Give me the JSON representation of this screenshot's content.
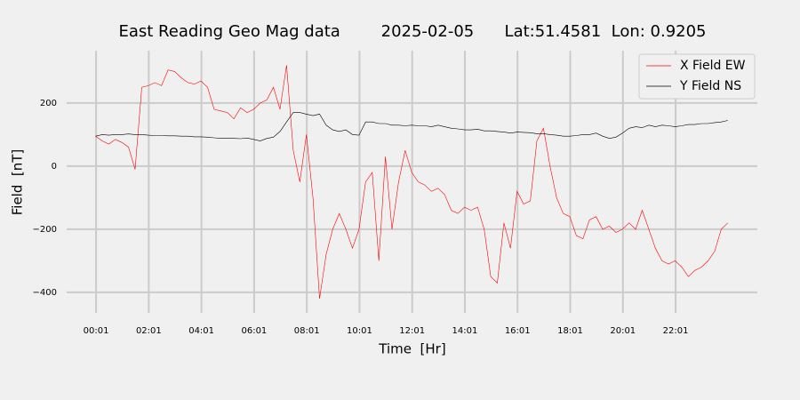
{
  "chart_data": {
    "type": "line",
    "title": "East Reading Geo Mag data        2025-02-05      Lat:51.4581  Lon: 0.9205",
    "x_label": "Time  [Hr]",
    "y_label": "Field  [nT]",
    "x": [
      0,
      0.25,
      0.5,
      0.75,
      1,
      1.25,
      1.5,
      1.75,
      2,
      2.25,
      2.5,
      2.75,
      3,
      3.25,
      3.5,
      3.75,
      4,
      4.25,
      4.5,
      4.75,
      5,
      5.25,
      5.5,
      5.75,
      6,
      6.25,
      6.5,
      6.75,
      7,
      7.25,
      7.5,
      7.75,
      8,
      8.25,
      8.5,
      8.75,
      9,
      9.25,
      9.5,
      9.75,
      10,
      10.25,
      10.5,
      10.75,
      11,
      11.25,
      11.5,
      11.75,
      12,
      12.25,
      12.5,
      12.75,
      13,
      13.25,
      13.5,
      13.75,
      14,
      14.25,
      14.5,
      14.75,
      15,
      15.25,
      15.5,
      15.75,
      16,
      16.25,
      16.5,
      16.75,
      17,
      17.25,
      17.5,
      17.75,
      18,
      18.25,
      18.5,
      18.75,
      19,
      19.25,
      19.5,
      19.75,
      20,
      20.25,
      20.5,
      20.75,
      21,
      21.25,
      21.5,
      21.75,
      22,
      22.25,
      22.5,
      22.75,
      23,
      23.25,
      23.5,
      23.75,
      24
    ],
    "series": [
      {
        "name": "X Field EW",
        "color": "#ff0000",
        "values": [
          95,
          80,
          70,
          85,
          75,
          60,
          -10,
          250,
          255,
          265,
          255,
          305,
          300,
          280,
          265,
          260,
          270,
          250,
          180,
          175,
          170,
          150,
          185,
          170,
          180,
          200,
          210,
          250,
          180,
          320,
          50,
          -50,
          100,
          -100,
          -420,
          -280,
          -200,
          -150,
          -200,
          -260,
          -200,
          -50,
          -20,
          -300,
          30,
          -200,
          -50,
          50,
          -20,
          -50,
          -60,
          -80,
          -70,
          -90,
          -140,
          -150,
          -130,
          -140,
          -130,
          -200,
          -350,
          -370,
          -180,
          -260,
          -80,
          -120,
          -110,
          80,
          120,
          0,
          -100,
          -150,
          -160,
          -220,
          -230,
          -170,
          -160,
          -200,
          -190,
          -210,
          -200,
          -180,
          -200,
          -140,
          -200,
          -260,
          -300,
          -310,
          -300,
          -320,
          -350,
          -330,
          -320,
          -300,
          -270,
          -200,
          -180
        ]
      },
      {
        "name": "Y Field NS",
        "color": "#000000",
        "values": [
          95,
          100,
          98,
          100,
          100,
          102,
          100,
          100,
          98,
          97,
          97,
          96,
          96,
          95,
          95,
          93,
          93,
          92,
          90,
          88,
          88,
          88,
          87,
          89,
          85,
          80,
          88,
          92,
          110,
          140,
          170,
          170,
          165,
          160,
          165,
          130,
          115,
          110,
          115,
          100,
          98,
          140,
          140,
          135,
          135,
          130,
          130,
          128,
          130,
          128,
          128,
          125,
          130,
          125,
          120,
          118,
          115,
          115,
          117,
          112,
          112,
          110,
          108,
          105,
          108,
          107,
          106,
          103,
          103,
          100,
          98,
          95,
          95,
          97,
          100,
          100,
          105,
          95,
          88,
          92,
          105,
          120,
          125,
          122,
          130,
          125,
          130,
          128,
          125,
          128,
          132,
          132,
          135,
          135,
          138,
          140,
          145
        ]
      }
    ],
    "xlim": [
      -1.1,
      25.12
    ],
    "xticks": [
      {
        "value": 0.0167,
        "label": "00:01"
      },
      {
        "value": 2.0167,
        "label": "02:01"
      },
      {
        "value": 4.0167,
        "label": "04:01"
      },
      {
        "value": 6.0167,
        "label": "06:01"
      },
      {
        "value": 8.0167,
        "label": "08:01"
      },
      {
        "value": 10.0167,
        "label": "10:01"
      },
      {
        "value": 12.0167,
        "label": "12:01"
      },
      {
        "value": 14.0167,
        "label": "14:01"
      },
      {
        "value": 16.0167,
        "label": "16:01"
      },
      {
        "value": 18.0167,
        "label": "18:01"
      },
      {
        "value": 20.0167,
        "label": "20:01"
      },
      {
        "value": 22.0167,
        "label": "22:01"
      }
    ],
    "ylim": [
      -465,
      366
    ],
    "yticks": [
      {
        "value": -400,
        "label": "−400"
      },
      {
        "value": -200,
        "label": "−200"
      },
      0,
      200
    ],
    "grid": true,
    "legend": "upper right"
  }
}
